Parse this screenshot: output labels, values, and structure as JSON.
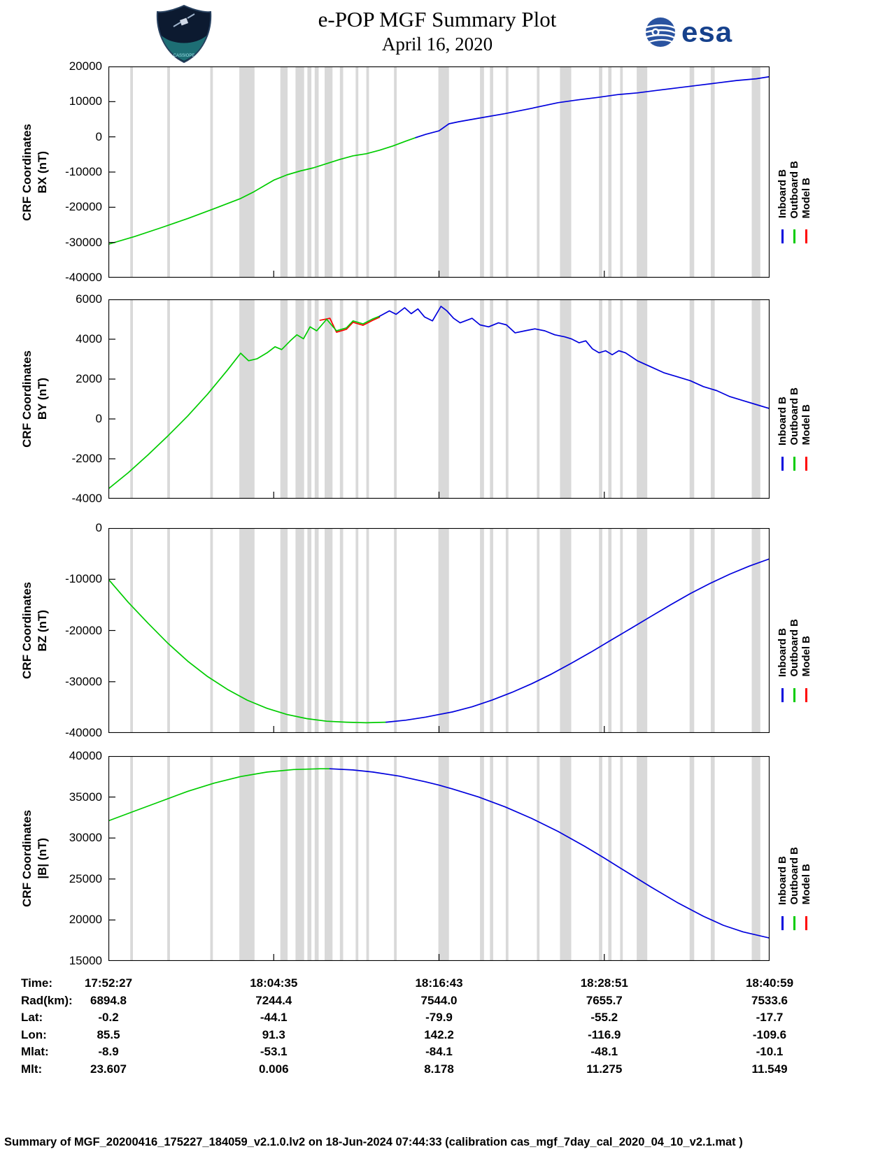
{
  "header": {
    "title": "e-POP MGF Summary Plot",
    "date": "April 16, 2020",
    "esa_label": "esa",
    "patch_label": "CASSIOPE"
  },
  "legend": {
    "items": [
      {
        "label": "Inboard B",
        "color": "#0000dd"
      },
      {
        "label": "Outboard B",
        "color": "#00cc00"
      },
      {
        "label": "Model B",
        "color": "#ff0000"
      }
    ]
  },
  "colors": {
    "gap_band": "#d9d9d9",
    "axis": "#000000"
  },
  "x_axis": {
    "start": "17:52:27",
    "end": "18:40:59",
    "ticks": [
      "17:52:27",
      "18:04:35",
      "18:16:43",
      "18:28:51",
      "18:40:59"
    ]
  },
  "gap_bands": [
    [
      0.033,
      0.004
    ],
    [
      0.089,
      0.004
    ],
    [
      0.154,
      0.004
    ],
    [
      0.198,
      0.023
    ],
    [
      0.26,
      0.011
    ],
    [
      0.283,
      0.013
    ],
    [
      0.301,
      0.006
    ],
    [
      0.312,
      0.006
    ],
    [
      0.327,
      0.012
    ],
    [
      0.35,
      0.005
    ],
    [
      0.374,
      0.004
    ],
    [
      0.39,
      0.004
    ],
    [
      0.432,
      0.004
    ],
    [
      0.499,
      0.016
    ],
    [
      0.562,
      0.006
    ],
    [
      0.577,
      0.005
    ],
    [
      0.601,
      0.004
    ],
    [
      0.648,
      0.004
    ],
    [
      0.683,
      0.017
    ],
    [
      0.742,
      0.005
    ],
    [
      0.756,
      0.005
    ],
    [
      0.774,
      0.004
    ],
    [
      0.799,
      0.016
    ],
    [
      0.879,
      0.007
    ],
    [
      0.911,
      0.006
    ],
    [
      0.973,
      0.013
    ]
  ],
  "chart_data": [
    {
      "type": "line",
      "key": "BX",
      "ylabel_line1": "CRF Coordinates",
      "ylabel_line2": "BX (nT)",
      "ylim": [
        -40000,
        20000
      ],
      "yticks": [
        -40000,
        -30000,
        -20000,
        -10000,
        0,
        10000,
        20000
      ],
      "x_units": "fraction of time axis 17:52:27 to 18:40:59",
      "series": [
        {
          "name": "Outboard B",
          "color": "#00cc00",
          "points": [
            [
              0,
              -30500
            ],
            [
              0.04,
              -28300
            ],
            [
              0.08,
              -25800
            ],
            [
              0.12,
              -23200
            ],
            [
              0.16,
              -20400
            ],
            [
              0.2,
              -17500
            ],
            [
              0.22,
              -15600
            ],
            [
              0.25,
              -12300
            ],
            [
              0.27,
              -10800
            ],
            [
              0.29,
              -9700
            ],
            [
              0.31,
              -8800
            ],
            [
              0.33,
              -7600
            ],
            [
              0.35,
              -6400
            ],
            [
              0.37,
              -5400
            ],
            [
              0.39,
              -4800
            ],
            [
              0.41,
              -3800
            ],
            [
              0.43,
              -2600
            ],
            [
              0.45,
              -1200
            ],
            [
              0.465,
              -200
            ]
          ]
        },
        {
          "name": "Inboard B",
          "color": "#0000dd",
          "points": [
            [
              0.465,
              -200
            ],
            [
              0.48,
              700
            ],
            [
              0.5,
              1700
            ],
            [
              0.515,
              3700
            ],
            [
              0.53,
              4300
            ],
            [
              0.56,
              5300
            ],
            [
              0.6,
              6600
            ],
            [
              0.64,
              8100
            ],
            [
              0.68,
              9700
            ],
            [
              0.71,
              10500
            ],
            [
              0.74,
              11200
            ],
            [
              0.77,
              12000
            ],
            [
              0.8,
              12500
            ],
            [
              0.83,
              13200
            ],
            [
              0.86,
              13900
            ],
            [
              0.89,
              14600
            ],
            [
              0.92,
              15300
            ],
            [
              0.95,
              16000
            ],
            [
              0.98,
              16500
            ],
            [
              1.0,
              17100
            ]
          ]
        }
      ]
    },
    {
      "type": "line",
      "key": "BY",
      "ylabel_line1": "CRF Coordinates",
      "ylabel_line2": "BY (nT)",
      "ylim": [
        -4000,
        6000
      ],
      "yticks": [
        -4000,
        -2000,
        0,
        2000,
        4000,
        6000
      ],
      "x_units": "fraction of time axis 17:52:27 to 18:40:59",
      "series": [
        {
          "name": "Model B",
          "color": "#ff0000",
          "points": [
            [
              0.32,
              4950
            ],
            [
              0.335,
              5050
            ],
            [
              0.345,
              4350
            ],
            [
              0.36,
              4500
            ],
            [
              0.37,
              4850
            ],
            [
              0.385,
              4700
            ],
            [
              0.4,
              4950
            ],
            [
              0.41,
              5100
            ]
          ]
        },
        {
          "name": "Outboard B",
          "color": "#00cc00",
          "points": [
            [
              0,
              -3500
            ],
            [
              0.03,
              -2700
            ],
            [
              0.06,
              -1800
            ],
            [
              0.09,
              -850
            ],
            [
              0.12,
              150
            ],
            [
              0.15,
              1250
            ],
            [
              0.18,
              2450
            ],
            [
              0.2,
              3300
            ],
            [
              0.212,
              2920
            ],
            [
              0.225,
              3020
            ],
            [
              0.24,
              3320
            ],
            [
              0.252,
              3620
            ],
            [
              0.262,
              3480
            ],
            [
              0.275,
              3920
            ],
            [
              0.285,
              4220
            ],
            [
              0.295,
              4020
            ],
            [
              0.305,
              4620
            ],
            [
              0.315,
              4420
            ],
            [
              0.33,
              5000
            ],
            [
              0.345,
              4420
            ],
            [
              0.36,
              4570
            ],
            [
              0.37,
              4920
            ],
            [
              0.385,
              4770
            ],
            [
              0.4,
              5020
            ],
            [
              0.41,
              5150
            ]
          ]
        },
        {
          "name": "Inboard B",
          "color": "#0000dd",
          "points": [
            [
              0.41,
              5150
            ],
            [
              0.425,
              5420
            ],
            [
              0.435,
              5250
            ],
            [
              0.448,
              5580
            ],
            [
              0.458,
              5280
            ],
            [
              0.468,
              5520
            ],
            [
              0.478,
              5120
            ],
            [
              0.49,
              4920
            ],
            [
              0.503,
              5650
            ],
            [
              0.512,
              5420
            ],
            [
              0.522,
              5050
            ],
            [
              0.532,
              4820
            ],
            [
              0.55,
              5050
            ],
            [
              0.562,
              4720
            ],
            [
              0.575,
              4620
            ],
            [
              0.59,
              4820
            ],
            [
              0.602,
              4720
            ],
            [
              0.615,
              4320
            ],
            [
              0.63,
              4420
            ],
            [
              0.645,
              4520
            ],
            [
              0.66,
              4420
            ],
            [
              0.675,
              4220
            ],
            [
              0.69,
              4120
            ],
            [
              0.7,
              4020
            ],
            [
              0.712,
              3820
            ],
            [
              0.722,
              3920
            ],
            [
              0.732,
              3520
            ],
            [
              0.742,
              3320
            ],
            [
              0.752,
              3420
            ],
            [
              0.762,
              3220
            ],
            [
              0.772,
              3420
            ],
            [
              0.782,
              3320
            ],
            [
              0.8,
              2920
            ],
            [
              0.82,
              2620
            ],
            [
              0.84,
              2320
            ],
            [
              0.86,
              2120
            ],
            [
              0.88,
              1920
            ],
            [
              0.9,
              1620
            ],
            [
              0.92,
              1420
            ],
            [
              0.94,
              1120
            ],
            [
              0.96,
              920
            ],
            [
              0.98,
              720
            ],
            [
              1.0,
              520
            ]
          ]
        }
      ]
    },
    {
      "type": "line",
      "key": "BZ",
      "ylabel_line1": "CRF Coordinates",
      "ylabel_line2": "BZ (nT)",
      "ylim": [
        -40000,
        0
      ],
      "yticks": [
        -40000,
        -30000,
        -20000,
        -10000,
        0
      ],
      "x_units": "fraction of time axis 17:52:27 to 18:40:59",
      "series": [
        {
          "name": "Outboard B",
          "color": "#00cc00",
          "points": [
            [
              0,
              -10000
            ],
            [
              0.03,
              -14500
            ],
            [
              0.06,
              -18600
            ],
            [
              0.09,
              -22500
            ],
            [
              0.12,
              -26000
            ],
            [
              0.15,
              -29000
            ],
            [
              0.18,
              -31500
            ],
            [
              0.21,
              -33600
            ],
            [
              0.24,
              -35200
            ],
            [
              0.27,
              -36400
            ],
            [
              0.3,
              -37200
            ],
            [
              0.33,
              -37700
            ],
            [
              0.36,
              -37900
            ],
            [
              0.39,
              -38000
            ],
            [
              0.42,
              -37900
            ]
          ]
        },
        {
          "name": "Inboard B",
          "color": "#0000dd",
          "points": [
            [
              0.42,
              -37900
            ],
            [
              0.45,
              -37500
            ],
            [
              0.48,
              -36900
            ],
            [
              0.5,
              -36400
            ],
            [
              0.52,
              -35900
            ],
            [
              0.55,
              -34900
            ],
            [
              0.58,
              -33600
            ],
            [
              0.61,
              -32100
            ],
            [
              0.64,
              -30400
            ],
            [
              0.67,
              -28500
            ],
            [
              0.7,
              -26400
            ],
            [
              0.73,
              -24200
            ],
            [
              0.76,
              -21900
            ],
            [
              0.79,
              -19600
            ],
            [
              0.82,
              -17300
            ],
            [
              0.85,
              -15000
            ],
            [
              0.88,
              -12800
            ],
            [
              0.91,
              -10800
            ],
            [
              0.94,
              -9000
            ],
            [
              0.97,
              -7400
            ],
            [
              1.0,
              -6000
            ]
          ]
        }
      ]
    },
    {
      "type": "line",
      "key": "Bmag",
      "ylabel_line1": "CRF Coordinates",
      "ylabel_line2": "|B| (nT)",
      "ylim": [
        15000,
        40000
      ],
      "yticks": [
        15000,
        20000,
        25000,
        30000,
        35000,
        40000
      ],
      "x_units": "fraction of time axis 17:52:27 to 18:40:59",
      "series": [
        {
          "name": "Outboard B",
          "color": "#00cc00",
          "points": [
            [
              0,
              32100
            ],
            [
              0.04,
              33300
            ],
            [
              0.08,
              34500
            ],
            [
              0.12,
              35700
            ],
            [
              0.16,
              36700
            ],
            [
              0.2,
              37500
            ],
            [
              0.24,
              38050
            ],
            [
              0.28,
              38350
            ],
            [
              0.32,
              38450
            ],
            [
              0.335,
              38450
            ]
          ]
        },
        {
          "name": "Inboard B",
          "color": "#0000dd",
          "points": [
            [
              0.335,
              38450
            ],
            [
              0.37,
              38300
            ],
            [
              0.4,
              38050
            ],
            [
              0.44,
              37550
            ],
            [
              0.48,
              36850
            ],
            [
              0.5,
              36450
            ],
            [
              0.52,
              36000
            ],
            [
              0.56,
              35000
            ],
            [
              0.6,
              33800
            ],
            [
              0.64,
              32400
            ],
            [
              0.68,
              30800
            ],
            [
              0.72,
              29000
            ],
            [
              0.75,
              27550
            ],
            [
              0.78,
              26050
            ],
            [
              0.82,
              24050
            ],
            [
              0.86,
              22150
            ],
            [
              0.9,
              20450
            ],
            [
              0.93,
              19350
            ],
            [
              0.96,
              18550
            ],
            [
              1.0,
              17800
            ]
          ]
        }
      ]
    }
  ],
  "table": {
    "rows": [
      {
        "label": "Time:",
        "values": [
          "17:52:27",
          "18:04:35",
          "18:16:43",
          "18:28:51",
          "18:40:59"
        ]
      },
      {
        "label": "Rad(km):",
        "values": [
          "6894.8",
          "7244.4",
          "7544.0",
          "7655.7",
          "7533.6"
        ]
      },
      {
        "label": "Lat:",
        "values": [
          "-0.2",
          "-44.1",
          "-79.9",
          "-55.2",
          "-17.7"
        ]
      },
      {
        "label": "Lon:",
        "values": [
          "85.5",
          "91.3",
          "142.2",
          "-116.9",
          "-109.6"
        ]
      },
      {
        "label": "Mlat:",
        "values": [
          "-8.9",
          "-53.1",
          "-84.1",
          "-48.1",
          "-10.1"
        ]
      },
      {
        "label": "Mlt:",
        "values": [
          "23.607",
          "0.006",
          "8.178",
          "11.275",
          "11.549"
        ]
      }
    ]
  },
  "footer": "Summary of MGF_20200416_175227_184059_v2.1.0.lv2 on 18-Jun-2024 07:44:33 (calibration cas_mgf_7day_cal_2020_04_10_v2.1.mat )"
}
